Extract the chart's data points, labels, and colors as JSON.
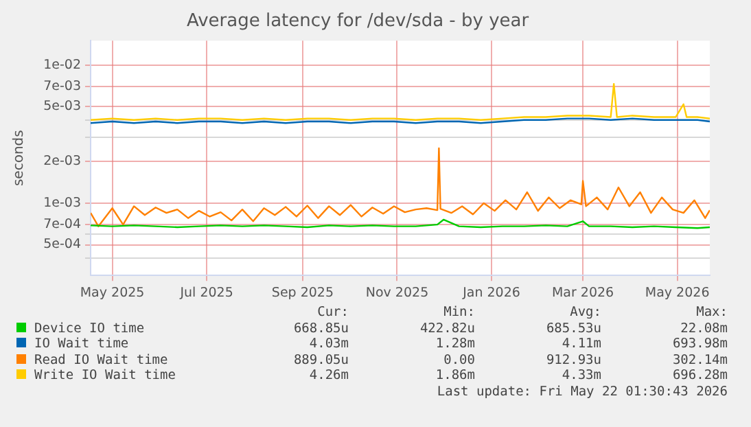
{
  "chart_data": {
    "type": "line",
    "title": "Average latency for /dev/sda - by year",
    "ylabel": "seconds",
    "log": "y",
    "grid": true,
    "legend": "bottom",
    "marker": "none",
    "line_style": "solid",
    "xlim": [
      "2025-04-17",
      "2026-05-22"
    ],
    "xticks": [
      {
        "value": "2025-05-01",
        "label": "May 2025"
      },
      {
        "value": "2025-07-01",
        "label": "Jul 2025"
      },
      {
        "value": "2025-09-01",
        "label": "Sep 2025"
      },
      {
        "value": "2025-11-01",
        "label": "Nov 2025"
      },
      {
        "value": "2026-01-01",
        "label": "Jan 2026"
      },
      {
        "value": "2026-03-01",
        "label": "Mar 2026"
      },
      {
        "value": "2026-05-01",
        "label": "May 2026"
      }
    ],
    "ylim": [
      0.00032,
      0.015
    ],
    "yticks": [
      {
        "value": 0.0004,
        "label": null
      },
      {
        "value": 0.0005,
        "label": "5e-04"
      },
      {
        "value": 0.0006,
        "label": null
      },
      {
        "value": 0.0007,
        "label": "7e-04"
      },
      {
        "value": 0.001,
        "label": "1e-03"
      },
      {
        "value": 0.002,
        "label": "2e-03"
      },
      {
        "value": 0.003,
        "label": null
      },
      {
        "value": 0.004,
        "label": null
      },
      {
        "value": 0.005,
        "label": "5e-03"
      },
      {
        "value": 0.007,
        "label": "7e-03"
      },
      {
        "value": 0.01,
        "label": "1e-02"
      }
    ],
    "series": [
      {
        "name": "Device IO time",
        "color": "#00cc00",
        "x": [
          "2025-04-17",
          "2025-05-01",
          "2025-05-15",
          "2025-05-29",
          "2025-06-12",
          "2025-06-26",
          "2025-07-10",
          "2025-07-24",
          "2025-08-07",
          "2025-08-21",
          "2025-09-04",
          "2025-09-18",
          "2025-10-02",
          "2025-10-16",
          "2025-10-30",
          "2025-11-13",
          "2025-11-27",
          "2025-12-01",
          "2025-12-11",
          "2025-12-25",
          "2026-01-08",
          "2026-01-22",
          "2026-02-05",
          "2026-02-19",
          "2026-03-01",
          "2026-03-05",
          "2026-03-19",
          "2026-04-02",
          "2026-04-16",
          "2026-04-30",
          "2026-05-14",
          "2026-05-22"
        ],
        "values": [
          0.00069,
          0.00068,
          0.00069,
          0.00068,
          0.00067,
          0.00068,
          0.00069,
          0.00068,
          0.00069,
          0.00068,
          0.00067,
          0.00069,
          0.00068,
          0.00069,
          0.00068,
          0.00068,
          0.0007,
          0.00076,
          0.00068,
          0.00067,
          0.00068,
          0.00068,
          0.00069,
          0.00068,
          0.00074,
          0.00068,
          0.00068,
          0.00067,
          0.00068,
          0.00067,
          0.00066,
          0.00067
        ]
      },
      {
        "name": "IO Wait time",
        "color": "#0066b3",
        "x": [
          "2025-04-17",
          "2025-05-01",
          "2025-05-15",
          "2025-05-29",
          "2025-06-12",
          "2025-06-26",
          "2025-07-10",
          "2025-07-24",
          "2025-08-07",
          "2025-08-21",
          "2025-09-04",
          "2025-09-18",
          "2025-10-02",
          "2025-10-16",
          "2025-10-30",
          "2025-11-13",
          "2025-11-27",
          "2025-12-11",
          "2025-12-25",
          "2026-01-08",
          "2026-01-22",
          "2026-02-05",
          "2026-02-19",
          "2026-03-05",
          "2026-03-19",
          "2026-04-02",
          "2026-04-16",
          "2026-04-30",
          "2026-05-14",
          "2026-05-22"
        ],
        "values": [
          0.0038,
          0.0039,
          0.0038,
          0.0039,
          0.0038,
          0.0039,
          0.0039,
          0.0038,
          0.0039,
          0.0038,
          0.0039,
          0.0039,
          0.0038,
          0.0039,
          0.0039,
          0.0038,
          0.0039,
          0.0039,
          0.0038,
          0.0039,
          0.004,
          0.004,
          0.0041,
          0.0041,
          0.004,
          0.0041,
          0.004,
          0.004,
          0.004,
          0.0039
        ]
      },
      {
        "name": "Read IO Wait time",
        "color": "#ff8000",
        "x": [
          "2025-04-17",
          "2025-04-22",
          "2025-05-01",
          "2025-05-08",
          "2025-05-15",
          "2025-05-22",
          "2025-05-29",
          "2025-06-05",
          "2025-06-12",
          "2025-06-19",
          "2025-06-26",
          "2025-07-03",
          "2025-07-10",
          "2025-07-17",
          "2025-07-24",
          "2025-07-31",
          "2025-08-07",
          "2025-08-14",
          "2025-08-21",
          "2025-08-28",
          "2025-09-04",
          "2025-09-11",
          "2025-09-18",
          "2025-09-25",
          "2025-10-02",
          "2025-10-09",
          "2025-10-16",
          "2025-10-23",
          "2025-10-30",
          "2025-11-06",
          "2025-11-13",
          "2025-11-20",
          "2025-11-27",
          "2025-11-28",
          "2025-11-29",
          "2025-12-06",
          "2025-12-13",
          "2025-12-20",
          "2025-12-27",
          "2026-01-03",
          "2026-01-10",
          "2026-01-17",
          "2026-01-24",
          "2026-01-31",
          "2026-02-07",
          "2026-02-14",
          "2026-02-21",
          "2026-02-28",
          "2026-03-01",
          "2026-03-03",
          "2026-03-10",
          "2026-03-17",
          "2026-03-24",
          "2026-03-31",
          "2026-04-07",
          "2026-04-14",
          "2026-04-21",
          "2026-04-28",
          "2026-05-05",
          "2026-05-12",
          "2026-05-19",
          "2026-05-22"
        ],
        "values": [
          0.00085,
          0.00068,
          0.00092,
          0.0007,
          0.00095,
          0.00082,
          0.00093,
          0.00085,
          0.0009,
          0.00078,
          0.00088,
          0.0008,
          0.00086,
          0.00075,
          0.0009,
          0.00074,
          0.00092,
          0.00082,
          0.00094,
          0.0008,
          0.00096,
          0.00078,
          0.00095,
          0.00082,
          0.00097,
          0.0008,
          0.00093,
          0.00084,
          0.00095,
          0.00086,
          0.0009,
          0.00092,
          0.00089,
          0.0025,
          0.00091,
          0.00085,
          0.00095,
          0.00083,
          0.001,
          0.00088,
          0.00105,
          0.0009,
          0.0012,
          0.00088,
          0.0011,
          0.00092,
          0.00105,
          0.00098,
          0.00145,
          0.00095,
          0.0011,
          0.0009,
          0.0013,
          0.00095,
          0.0012,
          0.00085,
          0.0011,
          0.0009,
          0.00085,
          0.00105,
          0.00078,
          0.00089
        ]
      },
      {
        "name": "Write IO Wait time",
        "color": "#ffcc00",
        "x": [
          "2025-04-17",
          "2025-05-01",
          "2025-05-15",
          "2025-05-29",
          "2025-06-12",
          "2025-06-26",
          "2025-07-10",
          "2025-07-24",
          "2025-08-07",
          "2025-08-21",
          "2025-09-04",
          "2025-09-18",
          "2025-10-02",
          "2025-10-16",
          "2025-10-30",
          "2025-11-13",
          "2025-11-27",
          "2025-12-11",
          "2025-12-25",
          "2026-01-08",
          "2026-01-22",
          "2026-02-05",
          "2026-02-19",
          "2026-03-05",
          "2026-03-19",
          "2026-03-21",
          "2026-03-23",
          "2026-04-02",
          "2026-04-16",
          "2026-04-30",
          "2026-05-05",
          "2026-05-07",
          "2026-05-14",
          "2026-05-22"
        ],
        "values": [
          0.004,
          0.0041,
          0.004,
          0.0041,
          0.004,
          0.0041,
          0.0041,
          0.004,
          0.0041,
          0.004,
          0.0041,
          0.0041,
          0.004,
          0.0041,
          0.0041,
          0.004,
          0.0041,
          0.0041,
          0.004,
          0.0041,
          0.0042,
          0.0042,
          0.0043,
          0.0043,
          0.0042,
          0.0073,
          0.0042,
          0.0043,
          0.0042,
          0.0042,
          0.0052,
          0.0042,
          0.0042,
          0.0041
        ]
      }
    ],
    "annotations": [
      "Cur:",
      "Min:",
      "Avg:",
      "Max:",
      "668.85u",
      "422.82u",
      "685.53u",
      "22.08m",
      "4.03m",
      "1.28m",
      "4.11m",
      "693.98m",
      "889.05u",
      "0.00",
      "912.93u",
      "302.14m",
      "4.26m",
      "1.86m",
      "4.33m",
      "696.28m",
      "Last update: Fri May 22 01:30:43 2026"
    ]
  }
}
